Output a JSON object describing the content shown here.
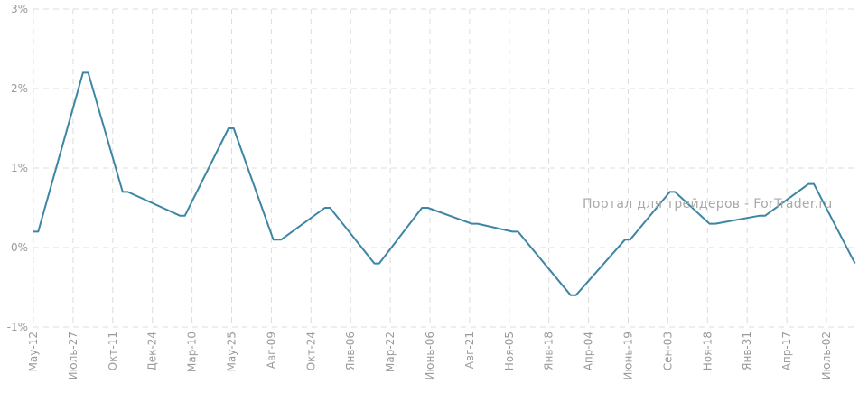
{
  "watermark": "Портал для трейдеров - ForTrader.ru",
  "chart_data": {
    "type": "line",
    "title": "",
    "xlabel": "",
    "ylabel": "",
    "ylim": [
      -1,
      3
    ],
    "y_ticks": [
      -1,
      0,
      1,
      2,
      3
    ],
    "y_tick_labels": [
      "-1%",
      "0%",
      "1%",
      "2%",
      "3%"
    ],
    "grid": true,
    "line_color": "#3d86a3",
    "x_tick_labels": [
      "Мау-12",
      "Июль-27",
      "Окт-11",
      "Дек-24",
      "Мар-10",
      "Мау-25",
      "Авг-09",
      "Окт-24",
      "Янв-06",
      "Мар-22",
      "Июнь-06",
      "Авг-21",
      "Ноя-05",
      "Янв-18",
      "Апр-04",
      "Июнь-19",
      "Сен-03",
      "Ноя-18",
      "Янв-31",
      "Апр-17",
      "Июль-02"
    ],
    "series": [
      {
        "points": [
          [
            0.0,
            0.2
          ],
          [
            0.12,
            0.2
          ],
          [
            1.25,
            2.2
          ],
          [
            1.38,
            2.2
          ],
          [
            2.25,
            0.7
          ],
          [
            2.38,
            0.7
          ],
          [
            3.7,
            0.4
          ],
          [
            3.82,
            0.4
          ],
          [
            4.92,
            1.5
          ],
          [
            5.05,
            1.5
          ],
          [
            6.05,
            0.1
          ],
          [
            6.25,
            0.1
          ],
          [
            7.35,
            0.5
          ],
          [
            7.48,
            0.5
          ],
          [
            8.6,
            -0.2
          ],
          [
            8.72,
            -0.2
          ],
          [
            9.8,
            0.5
          ],
          [
            9.95,
            0.5
          ],
          [
            11.05,
            0.3
          ],
          [
            11.2,
            0.3
          ],
          [
            12.08,
            0.2
          ],
          [
            12.22,
            0.2
          ],
          [
            13.55,
            -0.6
          ],
          [
            13.68,
            -0.6
          ],
          [
            14.92,
            0.1
          ],
          [
            15.05,
            0.1
          ],
          [
            16.05,
            0.7
          ],
          [
            16.18,
            0.7
          ],
          [
            17.05,
            0.3
          ],
          [
            17.2,
            0.3
          ],
          [
            18.3,
            0.4
          ],
          [
            18.45,
            0.4
          ],
          [
            19.55,
            0.8
          ],
          [
            19.68,
            0.8
          ],
          [
            20.72,
            -0.2
          ]
        ]
      }
    ]
  }
}
